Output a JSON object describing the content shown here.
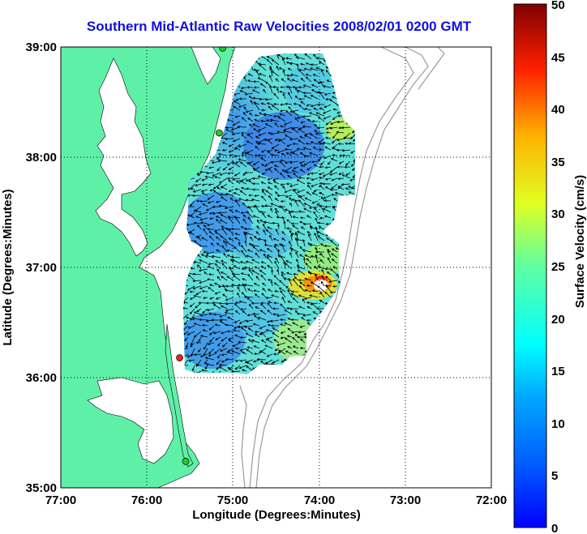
{
  "title": "Southern Mid-Atlantic Raw Velocities 2008/02/01 0200 GMT",
  "map": {
    "xlabel": "Longitude (Degrees:Minutes)",
    "ylabel": "Latitude (Degrees:Minutes)",
    "xticks": [
      "77:00",
      "76:00",
      "75:00",
      "74:00",
      "73:00",
      "72:00"
    ],
    "yticks": [
      "39:00",
      "38:00",
      "37:00",
      "36:00",
      "35:00"
    ],
    "xlim": [
      -77,
      -72
    ],
    "ylim": [
      35,
      39
    ],
    "land_color": "#5ff0a8",
    "grid": "dotted"
  },
  "colorbar": {
    "label": "Surface Velocity (cm/s)",
    "ticks": [
      "50",
      "45",
      "40",
      "35",
      "30",
      "25",
      "20",
      "15",
      "10",
      "5",
      "0"
    ],
    "range": [
      0,
      50
    ],
    "colormap": "jet"
  },
  "stations": [
    {
      "lon": -75.12,
      "lat": 38.99,
      "color": "#22cc22"
    },
    {
      "lon": -75.16,
      "lat": 38.22,
      "color": "#22cc22"
    },
    {
      "lon": -75.62,
      "lat": 36.18,
      "color": "#ee2020"
    },
    {
      "lon": -75.55,
      "lat": 35.24,
      "color": "#22cc22"
    }
  ]
}
